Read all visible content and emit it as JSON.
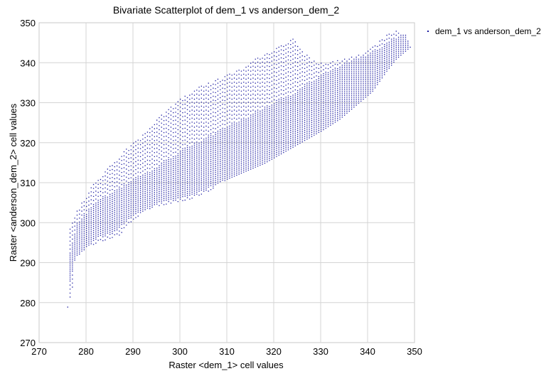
{
  "chart_data": {
    "type": "scatter",
    "title": "Bivariate Scatterplot of dem_1 vs anderson_dem_2",
    "xlabel": "Raster <dem_1> cell values",
    "ylabel": "Raster <anderson_dem_2> cell values",
    "xlim": [
      270,
      350
    ],
    "ylim": [
      270,
      350
    ],
    "xticks": [
      "270",
      "280",
      "290",
      "300",
      "310",
      "320",
      "330",
      "340",
      "350"
    ],
    "yticks": [
      "270",
      "280",
      "290",
      "300",
      "310",
      "320",
      "330",
      "340",
      "350"
    ],
    "grid": true,
    "legend_position": "top-right",
    "marker_color": "#1a1aa0",
    "series": [
      {
        "name": "dem_1 vs anderson_dem_2",
        "envelope": {
          "upper": [
            [
              276,
              279
            ],
            [
              276,
              298
            ],
            [
              278,
              303
            ],
            [
              281,
              309
            ],
            [
              284,
              313
            ],
            [
              288,
              318
            ],
            [
              292,
              322
            ],
            [
              296,
              327
            ],
            [
              300,
              331
            ],
            [
              304,
              334
            ],
            [
              308,
              336
            ],
            [
              312,
              338
            ],
            [
              316,
              341
            ],
            [
              319,
              343
            ],
            [
              322,
              345
            ],
            [
              324,
              346
            ],
            [
              325,
              345
            ],
            [
              326,
              343
            ],
            [
              328,
              341
            ],
            [
              331,
              340
            ],
            [
              335,
              341
            ],
            [
              338,
              342
            ],
            [
              341,
              344
            ],
            [
              344,
              347
            ],
            [
              346,
              348
            ],
            [
              348,
              347
            ],
            [
              349,
              344
            ]
          ],
          "lower": [
            [
              276,
              279
            ],
            [
              277,
              284
            ],
            [
              277,
              290
            ],
            [
              279,
              293
            ],
            [
              282,
              295
            ],
            [
              287,
              297
            ],
            [
              290,
              301
            ],
            [
              294,
              304
            ],
            [
              298,
              305
            ],
            [
              302,
              306
            ],
            [
              306,
              308
            ],
            [
              310,
              311
            ],
            [
              314,
              313
            ],
            [
              318,
              315
            ],
            [
              321,
              317
            ],
            [
              324,
              319
            ],
            [
              327,
              321
            ],
            [
              330,
              323
            ],
            [
              334,
              326
            ],
            [
              338,
              330
            ],
            [
              341,
              333
            ],
            [
              344,
              338
            ],
            [
              346,
              341
            ],
            [
              348,
              343
            ],
            [
              349,
              344
            ]
          ]
        },
        "dense_band": {
          "upper": [
            [
              276,
              290
            ],
            [
              278,
              300
            ],
            [
              282,
              305
            ],
            [
              286,
              308
            ],
            [
              290,
              311
            ],
            [
              295,
              314
            ],
            [
              300,
              318
            ],
            [
              305,
              321
            ],
            [
              310,
              324
            ],
            [
              315,
              327
            ],
            [
              320,
              330
            ],
            [
              325,
              333
            ],
            [
              330,
              337
            ],
            [
              335,
              340
            ],
            [
              340,
              342
            ],
            [
              344,
              345
            ],
            [
              347,
              347
            ]
          ],
          "lower": [
            [
              276,
              284
            ],
            [
              278,
              292
            ],
            [
              282,
              296
            ],
            [
              286,
              298
            ],
            [
              290,
              302
            ],
            [
              295,
              305
            ],
            [
              300,
              306
            ],
            [
              305,
              308
            ],
            [
              310,
              311
            ],
            [
              315,
              313
            ],
            [
              320,
              316
            ],
            [
              325,
              319
            ],
            [
              330,
              322
            ],
            [
              335,
              326
            ],
            [
              340,
              331
            ],
            [
              344,
              338
            ],
            [
              347,
              342
            ]
          ]
        }
      }
    ]
  }
}
